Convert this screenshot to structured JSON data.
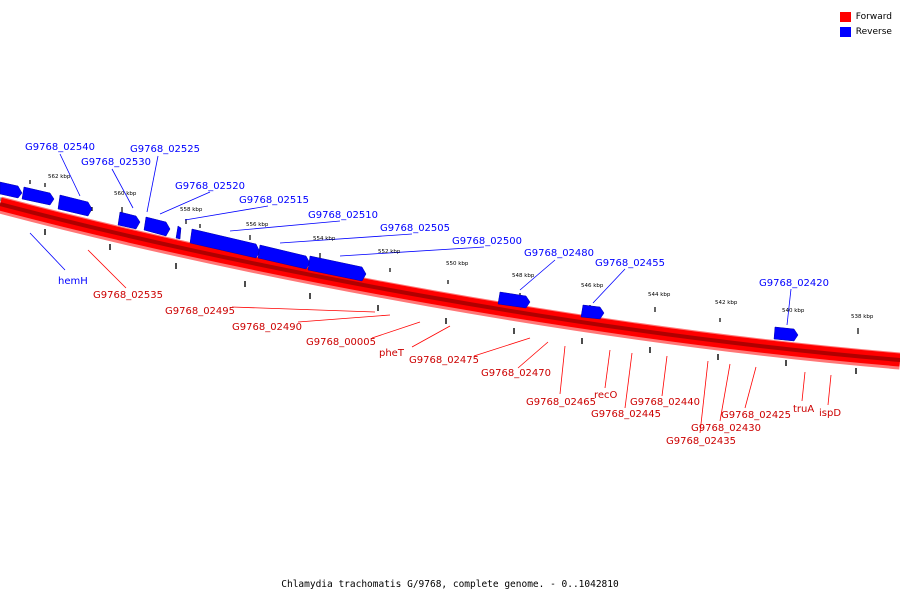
{
  "legend": {
    "forward_label": "Forward",
    "reverse_label": "Reverse",
    "forward_color": "#ff0000",
    "reverse_color": "#0000ff"
  },
  "caption": "Chlamydia trachomatis G/9768, complete genome. - 0..1042810",
  "scale_labels": [
    "562 kbp",
    "560 kbp",
    "558 kbp",
    "556 kbp",
    "554 kbp",
    "552 kbp",
    "550 kbp",
    "548 kbp",
    "546 kbp",
    "544 kbp",
    "542 kbp",
    "540 kbp",
    "538 kbp"
  ],
  "reverse_genes": [
    "G9768_02540",
    "G9768_02530",
    "G9768_02525",
    "G9768_02520",
    "G9768_02515",
    "G9768_02510",
    "G9768_02505",
    "G9768_02500",
    "G9768_02480",
    "G9768_02455",
    "G9768_02420",
    "hemH"
  ],
  "forward_genes": [
    "G9768_02535",
    "G9768_02495",
    "G9768_02490",
    "G9768_00005",
    "pheT",
    "G9768_02475",
    "G9768_02470",
    "G9768_02465",
    "recO",
    "G9768_02445",
    "G9768_02440",
    "G9768_02435",
    "G9768_02430",
    "G9768_02425",
    "truA",
    "ispD"
  ]
}
